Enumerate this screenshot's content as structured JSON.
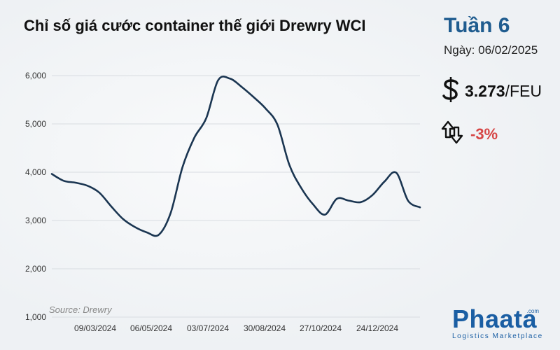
{
  "header": {
    "title": "Chỉ số giá cước container thế giới Drewry WCI"
  },
  "summary": {
    "week": "Tuần 6",
    "date_label": "Ngày: 06/02/2025",
    "price_value": "3.273",
    "price_unit": "/FEU",
    "change": "-3%",
    "change_color": "#d64545"
  },
  "source": "Source: Drewry",
  "brand": {
    "name": "Phaata",
    "tagline": "Logistics Marketplace",
    "suffix": ".com"
  },
  "icons": {
    "price": "dollar-sign-icon",
    "change": "up-down-arrows-icon"
  },
  "colors": {
    "line": "#1a3551",
    "accent": "#1f5c8f",
    "negative": "#d64545"
  },
  "chart_data": {
    "type": "line",
    "title": "Chỉ số giá cước container thế giới Drewry WCI",
    "xlabel": "",
    "ylabel": "",
    "ylim": [
      1000,
      6000
    ],
    "yticks": [
      "6,000",
      "5,000",
      "4,000",
      "3,000",
      "2,000",
      "1,000"
    ],
    "ytick_values": [
      6000,
      5000,
      4000,
      3000,
      2000,
      1000
    ],
    "xticks": [
      "09/03/2024",
      "06/05/2024",
      "03/07/2024",
      "30/08/2024",
      "27/10/2024",
      "24/12/2024"
    ],
    "grid": true,
    "series": [
      {
        "values": [
          3964,
          3822,
          3783,
          3720,
          3577,
          3293,
          3030,
          2864,
          2754,
          2703,
          3150,
          4100,
          4715,
          5117,
          5902,
          5937,
          5763,
          5552,
          5319,
          4981,
          4151,
          3674,
          3333,
          3122,
          3450,
          3411,
          3380,
          3526,
          3804,
          3989,
          3409,
          3273
        ]
      }
    ]
  }
}
